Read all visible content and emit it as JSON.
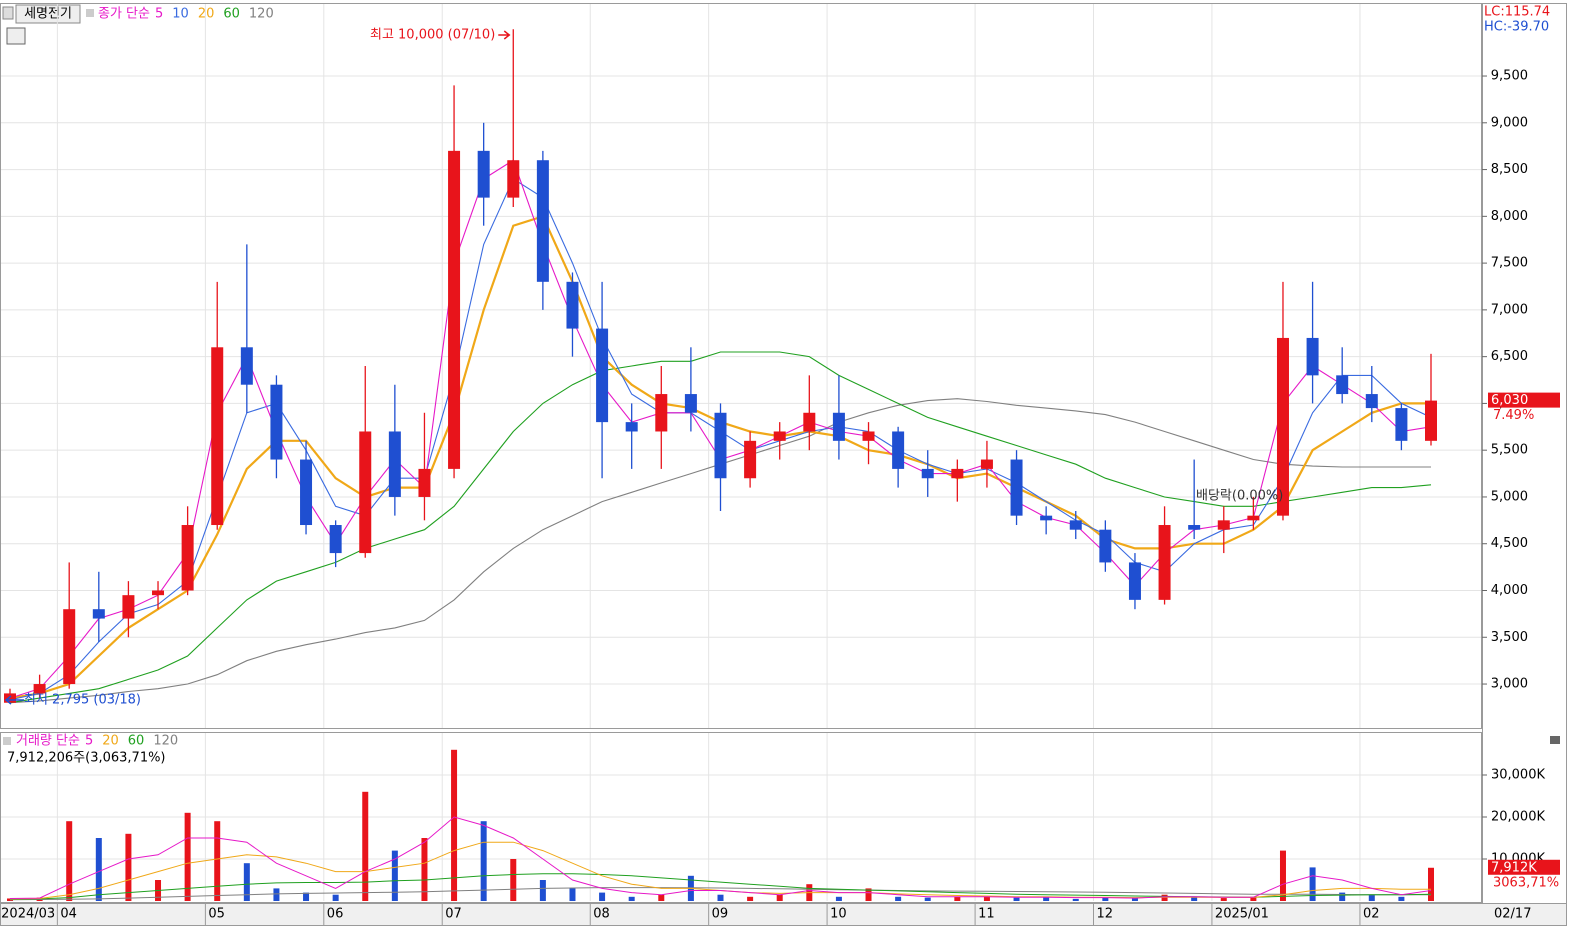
{
  "chart_data": {
    "type": "candlestick",
    "stock_name": "세명전기",
    "price_legend_label": "종가 단순",
    "lc": "LC:115.74",
    "hc": "HC:-39.70",
    "high_label": "최고 10,000 (07/10)",
    "low_label": "최저 2,795 (03/18)",
    "ex_dividend_label": "배당락(0.00%)",
    "last_price": {
      "value": 6030,
      "label": "6,030"
    },
    "change": "7.49%",
    "x_end_label": "02/17",
    "categories": [
      "2024/03",
      null,
      "04",
      null,
      null,
      null,
      null,
      "05",
      null,
      null,
      null,
      "06",
      null,
      null,
      null,
      "07",
      null,
      null,
      null,
      null,
      "08",
      null,
      null,
      null,
      "09",
      null,
      null,
      null,
      "10",
      null,
      null,
      null,
      null,
      "11",
      null,
      null,
      null,
      "12",
      null,
      null,
      null,
      "2025/01",
      null,
      null,
      null,
      null,
      "02",
      null,
      null
    ],
    "open": [
      2800,
      2900,
      3000,
      3800,
      3700,
      3950,
      4000,
      4700,
      6600,
      6200,
      5400,
      4700,
      4400,
      5700,
      5000,
      5300,
      8700,
      8200,
      8600,
      7300,
      6800,
      5800,
      5700,
      6100,
      5900,
      5200,
      5600,
      5700,
      5900,
      5600,
      5700,
      5300,
      5200,
      5300,
      5400,
      4800,
      4750,
      4650,
      4300,
      3900,
      4700,
      4650,
      4750,
      4800,
      6700,
      6300,
      6100,
      5950,
      5600
    ],
    "high": [
      2950,
      3100,
      4300,
      4200,
      4100,
      4100,
      4900,
      7300,
      7700,
      6300,
      5600,
      4750,
      6400,
      6200,
      5900,
      9400,
      9000,
      10000,
      8700,
      7400,
      7300,
      6000,
      6400,
      6600,
      6000,
      5700,
      5800,
      6300,
      6300,
      5800,
      5750,
      5500,
      5400,
      5600,
      5500,
      4900,
      4850,
      4750,
      4400,
      4900,
      5400,
      4900,
      5000,
      7300,
      7300,
      6600,
      6400,
      6000,
      6530
    ],
    "low": [
      2795,
      2850,
      2950,
      3450,
      3500,
      3800,
      3950,
      4650,
      5900,
      5200,
      4600,
      4250,
      4350,
      4800,
      4750,
      5200,
      7900,
      8100,
      7000,
      6500,
      5200,
      5300,
      5300,
      5700,
      4850,
      5100,
      5400,
      5500,
      5400,
      5350,
      5100,
      5000,
      4950,
      5100,
      4700,
      4600,
      4550,
      4200,
      3800,
      3850,
      4550,
      4400,
      4650,
      4750,
      6000,
      6000,
      5800,
      5500,
      5550
    ],
    "close": [
      2900,
      3000,
      3800,
      3700,
      3950,
      4000,
      4700,
      6600,
      6200,
      5400,
      4700,
      4400,
      5700,
      5000,
      5300,
      8700,
      8200,
      8600,
      7300,
      6800,
      5800,
      5700,
      6100,
      5900,
      5200,
      5600,
      5700,
      5900,
      5600,
      5700,
      5300,
      5200,
      5300,
      5400,
      4800,
      4750,
      4650,
      4300,
      3900,
      4700,
      4650,
      4750,
      4800,
      6700,
      6300,
      6100,
      5950,
      5600,
      6030
    ],
    "series": [
      {
        "name": "5",
        "color": "#e619c8",
        "values": [
          2850,
          2950,
          3300,
          3700,
          3800,
          3950,
          4400,
          5900,
          6500,
          5700,
          5000,
          4500,
          5000,
          5400,
          5100,
          7500,
          8400,
          8600,
          7700,
          6900,
          6200,
          5800,
          5900,
          5900,
          5400,
          5500,
          5650,
          5800,
          5700,
          5650,
          5400,
          5250,
          5250,
          5350,
          4950,
          4780,
          4700,
          4400,
          4050,
          4400,
          4650,
          4700,
          4780,
          6000,
          6400,
          6200,
          6000,
          5700,
          5750
        ]
      },
      {
        "name": "10",
        "color": "#3a6be0",
        "values": [
          2830,
          2900,
          3100,
          3450,
          3750,
          3850,
          4100,
          5000,
          5900,
          6000,
          5500,
          4900,
          4800,
          5200,
          5200,
          6300,
          7700,
          8400,
          8200,
          7500,
          6700,
          6100,
          5900,
          5900,
          5700,
          5500,
          5600,
          5700,
          5750,
          5700,
          5500,
          5350,
          5250,
          5300,
          5150,
          4950,
          4750,
          4600,
          4300,
          4200,
          4500,
          4650,
          4700,
          5200,
          5900,
          6300,
          6300,
          6000,
          5850
        ]
      },
      {
        "name": "20",
        "color": "#f0a818",
        "values": [
          2850,
          2900,
          3000,
          3300,
          3600,
          3800,
          4000,
          4600,
          5300,
          5600,
          5600,
          5200,
          5000,
          5100,
          5100,
          5900,
          7000,
          7900,
          8000,
          7300,
          6500,
          6200,
          6000,
          5950,
          5800,
          5700,
          5650,
          5700,
          5650,
          5500,
          5450,
          5350,
          5200,
          5250,
          5100,
          4950,
          4800,
          4550,
          4450,
          4450,
          4500,
          4500,
          4650,
          4900,
          5500,
          5700,
          5900,
          6000,
          6000
        ]
      },
      {
        "name": "60",
        "color": "#20a020",
        "values": [
          2800,
          2850,
          2900,
          2950,
          3050,
          3150,
          3300,
          3600,
          3900,
          4100,
          4200,
          4300,
          4450,
          4550,
          4650,
          4900,
          5300,
          5700,
          6000,
          6200,
          6350,
          6400,
          6450,
          6450,
          6550,
          6550,
          6550,
          6500,
          6300,
          6150,
          6000,
          5850,
          5750,
          5650,
          5550,
          5450,
          5350,
          5200,
          5100,
          5000,
          4950,
          4900,
          4900,
          4950,
          5000,
          5050,
          5100,
          5100,
          5130
        ]
      },
      {
        "name": "120",
        "color": "#808080",
        "values": [
          2800,
          2820,
          2850,
          2880,
          2920,
          2950,
          3000,
          3100,
          3250,
          3350,
          3420,
          3480,
          3550,
          3600,
          3680,
          3900,
          4200,
          4450,
          4650,
          4800,
          4950,
          5050,
          5150,
          5250,
          5350,
          5450,
          5550,
          5650,
          5800,
          5900,
          5980,
          6030,
          6050,
          6020,
          5980,
          5950,
          5920,
          5880,
          5800,
          5700,
          5600,
          5500,
          5400,
          5350,
          5330,
          5320,
          5320,
          5320,
          5320
        ]
      }
    ],
    "up_color": "#e8141b",
    "down_color": "#1f4fd1",
    "ylim": [
      2530,
      10270
    ],
    "yticks": [
      {
        "value": 3000,
        "label": "3,000"
      },
      {
        "value": 3500,
        "label": "3,500"
      },
      {
        "value": 4000,
        "label": "4,000"
      },
      {
        "value": 4500,
        "label": "4,500"
      },
      {
        "value": 5000,
        "label": "5,000"
      },
      {
        "value": 5500,
        "label": "5,500"
      },
      {
        "value": 6000,
        "label": "6,000"
      },
      {
        "value": 6500,
        "label": "6,500"
      },
      {
        "value": 7000,
        "label": "7,000"
      },
      {
        "value": 7500,
        "label": "7,500"
      },
      {
        "value": 8000,
        "label": "8,000"
      },
      {
        "value": 8500,
        "label": "8,500"
      },
      {
        "value": 9000,
        "label": "9,000"
      },
      {
        "value": 9500,
        "label": "9,500"
      }
    ],
    "grid": true,
    "volume": {
      "legend_label": "거래량 단순",
      "info": "7,912,206주(3,063,71%)",
      "last_volume": {
        "value": 7912,
        "label": "7,912K"
      },
      "ratio": "3063,71%",
      "values": [
        600,
        800,
        19000,
        15000,
        16000,
        5000,
        21000,
        19000,
        9000,
        3000,
        2000,
        1500,
        26000,
        12000,
        15000,
        36000,
        19000,
        10000,
        5000,
        3000,
        2000,
        1000,
        1500,
        6000,
        1500,
        1000,
        1500,
        4000,
        1000,
        3000,
        1000,
        800,
        1000,
        1000,
        800,
        1000,
        500,
        800,
        600,
        1500,
        1000,
        700,
        900,
        12000,
        8000,
        2000,
        1500,
        1000,
        7912
      ],
      "series": [
        {
          "name": "5",
          "color": "#e619c8",
          "values": [
            600,
            700,
            4000,
            7000,
            10000,
            11000,
            15000,
            15000,
            14000,
            9000,
            6000,
            3000,
            7000,
            10000,
            14000,
            20000,
            18000,
            15000,
            10000,
            5000,
            3000,
            2000,
            1500,
            2500,
            2500,
            2000,
            1500,
            2500,
            2000,
            2000,
            1500,
            1000,
            1000,
            1000,
            900,
            900,
            800,
            800,
            700,
            1000,
            1000,
            900,
            900,
            4000,
            6000,
            5000,
            3000,
            1500,
            2500
          ]
        },
        {
          "name": "20",
          "color": "#f0a818",
          "values": [
            500,
            600,
            1500,
            3000,
            5000,
            7000,
            9000,
            10000,
            11000,
            10500,
            9000,
            7000,
            7000,
            8000,
            9000,
            12000,
            14000,
            14000,
            12000,
            9000,
            6000,
            4000,
            3000,
            3000,
            2500,
            2000,
            1800,
            2000,
            2000,
            2000,
            1700,
            1500,
            1300,
            1200,
            1000,
            1000,
            900,
            900,
            800,
            900,
            900,
            850,
            850,
            1500,
            2500,
            3000,
            3000,
            2800,
            2800
          ]
        },
        {
          "name": "60",
          "color": "#20a020",
          "values": [
            400,
            500,
            800,
            1500,
            2000,
            2500,
            3000,
            3500,
            4000,
            4300,
            4400,
            4400,
            4500,
            4800,
            5000,
            5500,
            6000,
            6300,
            6500,
            6500,
            6300,
            6000,
            5500,
            5000,
            4500,
            4000,
            3500,
            3000,
            2800,
            2600,
            2400,
            2200,
            2000,
            1800,
            1600,
            1500,
            1400,
            1300,
            1200,
            1100,
            1000,
            950,
            900,
            1100,
            1300,
            1400,
            1500,
            1500,
            1600
          ]
        },
        {
          "name": "120",
          "color": "#808080",
          "values": [
            300,
            350,
            400,
            500,
            700,
            900,
            1100,
            1300,
            1500,
            1700,
            1800,
            1900,
            2000,
            2100,
            2200,
            2400,
            2600,
            2800,
            3000,
            3100,
            3200,
            3200,
            3200,
            3150,
            3100,
            3000,
            2900,
            2800,
            2700,
            2600,
            2500,
            2400,
            2350,
            2300,
            2250,
            2200,
            2150,
            2100,
            2000,
            1900,
            1800,
            1700,
            1600,
            1600,
            1600,
            1550,
            1500,
            1500,
            1500
          ]
        }
      ],
      "ylim": [
        0,
        40000
      ],
      "yticks": [
        {
          "value": 10000,
          "label": "10,000K"
        },
        {
          "value": 20000,
          "label": "20,000K"
        },
        {
          "value": 30000,
          "label": "30,000K"
        }
      ]
    }
  }
}
